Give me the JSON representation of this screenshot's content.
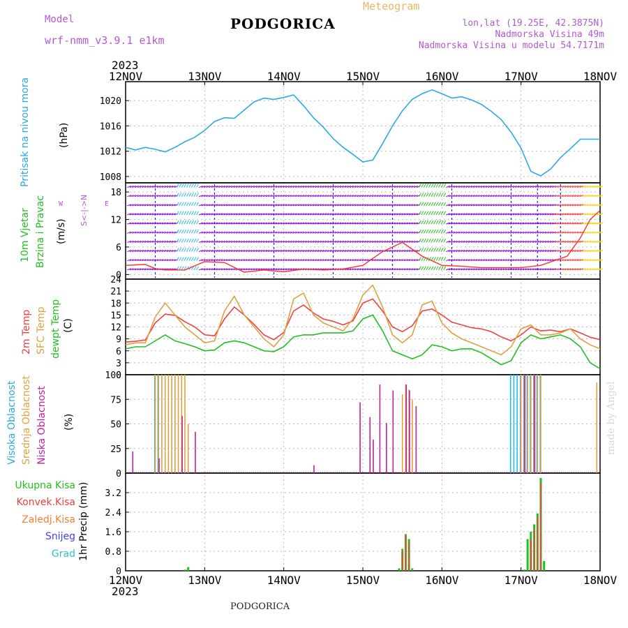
{
  "header": {
    "model_label": "Model",
    "model_name": "wrf-nmm_v3.9.1 e1km",
    "title": "PODGORICA",
    "meteogram": "Meteogram",
    "coords": "lon,lat (19.25E, 42.3875N)",
    "elevation": "Nadmorska Visina 49m",
    "model_elevation": "Nadmorska Visina u modelu 54.7171m"
  },
  "footer": {
    "station": "PODGORICA",
    "made_by": "made by Angel"
  },
  "time_axis": {
    "year": "2023",
    "labels": [
      "12NOV",
      "13NOV",
      "14NOV",
      "15NOV",
      "16NOV",
      "17NOV",
      "18NOV"
    ]
  },
  "colors": {
    "pressure": "#29a9e6",
    "wind_purple": "#8b00d9",
    "wind_cyan": "#2ab8e8",
    "wind_blue": "#2020ff",
    "wind_green": "#20c020",
    "wind_yellow": "#f0d000",
    "wind_red": "#ff3030",
    "temp_2m": "#f04040",
    "temp_sfc": "#e0a040",
    "dewpt": "#20c020",
    "cloud_high": "#2ab8e8",
    "cloud_mid": "#e0a040",
    "cloud_low": "#c0209a",
    "precip_total": "#20c020",
    "precip_conv": "#f04040",
    "precip_frozen": "#f08030",
    "snow": "#4040ff",
    "hail": "#30c0c0",
    "grid": "#bbbbbb"
  },
  "panels": {
    "pressure": {
      "label": "Pritisak na nivou mora",
      "unit": "(hPa)"
    },
    "wind": {
      "label1": "10m Vjetar",
      "label2": "Brzina i Pravac",
      "unit": "(m/s)",
      "compass_ns": "S<-|->N",
      "compass_w": "W",
      "compass_e": "E"
    },
    "temp": {
      "label1": "2m Temp",
      "label2": "SFC Temp",
      "label3": "dewpt Temp",
      "unit": "(C)"
    },
    "cloud": {
      "label1": "Visoka Oblacnost",
      "label2": "Srednja Oblacnost",
      "label3": "Niska Oblacnost",
      "unit": "(%)"
    },
    "precip": {
      "labels": [
        "Ukupna Kisa",
        "Konvek.Kisa",
        "Zaledj.Kisa",
        "Snijeg",
        "Grad"
      ],
      "unit": "1hr Precip (mm)"
    }
  },
  "chart_data": [
    {
      "type": "line",
      "title": "Pritisak na nivou mora",
      "ylabel": "(hPa)",
      "xlim": [
        0,
        144
      ],
      "ylim": [
        1007,
        1023
      ],
      "yticks": [
        1008,
        1012,
        1016,
        1020
      ],
      "series": [
        {
          "name": "Pritisak na nivou mora",
          "x": [
            0,
            3,
            6,
            9,
            12,
            15,
            18,
            21,
            24,
            27,
            30,
            33,
            36,
            39,
            42,
            45,
            48,
            51,
            54,
            57,
            60,
            63,
            66,
            69,
            72,
            75,
            78,
            81,
            84,
            87,
            90,
            93,
            96,
            99,
            102,
            105,
            108,
            111,
            114,
            117,
            120,
            123,
            126,
            129,
            132,
            135,
            138,
            141,
            144
          ],
          "values": [
            1012.6,
            1012.2,
            1012.6,
            1012.3,
            1011.9,
            1012.6,
            1013.5,
            1014.2,
            1015.3,
            1016.7,
            1017.3,
            1017.2,
            1018.5,
            1019.8,
            1020.4,
            1020.2,
            1020.5,
            1020.9,
            1019.2,
            1017.3,
            1015.8,
            1014.0,
            1012.6,
            1011.5,
            1010.3,
            1010.6,
            1013.2,
            1016.0,
            1018.4,
            1020.2,
            1021.1,
            1021.7,
            1021.1,
            1020.4,
            1020.6,
            1020.1,
            1019.4,
            1018.3,
            1017.0,
            1015.0,
            1012.5,
            1008.8,
            1008.1,
            1009.2,
            1011.0,
            1012.4,
            1013.9,
            1013.9,
            1013.9
          ]
        }
      ]
    },
    {
      "type": "line",
      "title": "10m Vjetar Brzina i Pravac",
      "ylabel": "(m/s)",
      "xlim": [
        0,
        144
      ],
      "ylim": [
        -1,
        20
      ],
      "yticks": [
        0,
        6,
        12,
        18
      ],
      "series": [
        {
          "name": "10m Vjetar",
          "x": [
            0,
            6,
            9,
            12,
            18,
            24,
            30,
            36,
            42,
            48,
            54,
            60,
            66,
            72,
            78,
            84,
            90,
            96,
            102,
            108,
            114,
            120,
            126,
            130,
            134,
            138,
            141,
            144
          ],
          "values": [
            2.0,
            2.2,
            1.3,
            1.0,
            1.0,
            2.8,
            2.6,
            0.5,
            1.0,
            0.6,
            1.2,
            1.0,
            1.2,
            2.0,
            5.0,
            7.0,
            4.0,
            2.0,
            1.8,
            1.5,
            1.5,
            1.5,
            2.0,
            3.0,
            4.0,
            8.0,
            12.0,
            14.0
          ]
        }
      ]
    },
    {
      "type": "line",
      "title": "2m Temp / SFC Temp / dewpt Temp",
      "ylabel": "(C)",
      "xlim": [
        0,
        144
      ],
      "ylim": [
        0,
        24
      ],
      "yticks": [
        0,
        3,
        6,
        9,
        12,
        15,
        18,
        21,
        24
      ],
      "series": [
        {
          "name": "2m Temp",
          "x": [
            0,
            3,
            6,
            9,
            12,
            15,
            18,
            21,
            24,
            27,
            30,
            33,
            36,
            39,
            42,
            45,
            48,
            51,
            54,
            57,
            60,
            63,
            66,
            69,
            72,
            75,
            78,
            81,
            84,
            87,
            90,
            93,
            96,
            99,
            102,
            105,
            108,
            111,
            114,
            117,
            120,
            123,
            126,
            129,
            132,
            135,
            138,
            141,
            144
          ],
          "values": [
            8.2,
            8.4,
            8.7,
            13.0,
            15.2,
            14.9,
            13.3,
            12.0,
            10.0,
            9.8,
            14.0,
            17.0,
            15.0,
            12.6,
            10.0,
            8.8,
            10.6,
            16.0,
            17.5,
            15.5,
            14.0,
            13.4,
            12.5,
            13.5,
            18.0,
            19.0,
            16.0,
            12.0,
            10.8,
            12.3,
            16.0,
            16.5,
            15.0,
            13.2,
            12.5,
            11.8,
            11.5,
            10.8,
            9.5,
            8.5,
            10.0,
            12.0,
            11.0,
            11.2,
            10.8,
            11.5,
            10.5,
            9.4,
            8.8
          ]
        },
        {
          "name": "SFC Temp",
          "x": [
            0,
            3,
            6,
            9,
            12,
            15,
            18,
            21,
            24,
            27,
            30,
            33,
            36,
            39,
            42,
            45,
            48,
            51,
            54,
            57,
            60,
            63,
            66,
            69,
            72,
            75,
            78,
            81,
            84,
            87,
            90,
            93,
            96,
            99,
            102,
            105,
            108,
            111,
            114,
            117,
            120,
            123,
            126,
            129,
            132,
            135,
            138,
            141,
            144
          ],
          "values": [
            7.5,
            8.0,
            8.0,
            14.5,
            18.0,
            15.0,
            12.0,
            10.0,
            8.0,
            8.5,
            16.0,
            19.7,
            15.0,
            12.0,
            9.0,
            7.0,
            10.0,
            19.0,
            20.5,
            15.0,
            13.0,
            12.0,
            11.0,
            14.0,
            20.0,
            22.5,
            17.0,
            10.0,
            8.0,
            10.0,
            17.5,
            18.5,
            13.0,
            10.5,
            9.0,
            8.0,
            7.0,
            6.0,
            5.0,
            7.0,
            11.5,
            12.5,
            10.0,
            10.0,
            10.5,
            11.5,
            9.0,
            7.5,
            6.5
          ]
        },
        {
          "name": "dewpt Temp",
          "x": [
            0,
            3,
            6,
            9,
            12,
            15,
            18,
            21,
            24,
            27,
            30,
            33,
            36,
            39,
            42,
            45,
            48,
            51,
            54,
            57,
            60,
            63,
            66,
            69,
            72,
            75,
            78,
            81,
            84,
            87,
            90,
            93,
            96,
            99,
            102,
            105,
            108,
            111,
            114,
            117,
            120,
            123,
            126,
            129,
            132,
            135,
            138,
            141,
            144
          ],
          "values": [
            6.5,
            7.0,
            7.0,
            8.5,
            10.0,
            8.5,
            7.8,
            7.0,
            6.0,
            6.2,
            8.0,
            8.5,
            8.0,
            7.0,
            6.0,
            5.8,
            7.0,
            9.5,
            10.0,
            10.0,
            10.5,
            10.5,
            10.5,
            11.0,
            14.0,
            15.0,
            11.0,
            6.0,
            5.0,
            4.0,
            5.0,
            7.5,
            7.0,
            6.0,
            6.5,
            6.5,
            5.5,
            4.0,
            2.5,
            3.5,
            8.0,
            10.0,
            9.0,
            9.5,
            10.0,
            9.0,
            7.0,
            3.0,
            1.5
          ]
        }
      ]
    },
    {
      "type": "bar",
      "title": "Visoka / Srednja / Niska Oblacnost",
      "ylabel": "(%)",
      "xlim": [
        0,
        144
      ],
      "ylim": [
        0,
        100
      ],
      "yticks": [
        0,
        25,
        50,
        75,
        100
      ],
      "series": [
        {
          "name": "Visoka Oblacnost",
          "x": [
            9,
            10,
            117,
            118,
            119,
            120,
            121,
            122,
            123,
            124,
            125,
            126
          ],
          "values": [
            100,
            100,
            100,
            100,
            100,
            100,
            100,
            100,
            100,
            100,
            100,
            100
          ]
        },
        {
          "name": "Srednja Oblacnost",
          "x": [
            9,
            10,
            11,
            12,
            13,
            14,
            15,
            16,
            17,
            18,
            19,
            84,
            85,
            86,
            87,
            120,
            121,
            122,
            123,
            124,
            125,
            126,
            143
          ],
          "values": [
            100,
            100,
            100,
            100,
            100,
            100,
            100,
            100,
            100,
            100,
            50,
            80,
            90,
            85,
            75,
            100,
            100,
            100,
            100,
            100,
            100,
            100,
            92
          ]
        },
        {
          "name": "Niska Oblacnost",
          "x": [
            2,
            10,
            17,
            21,
            57,
            71,
            74,
            75,
            77,
            79,
            81,
            85,
            86,
            88,
            121,
            124
          ],
          "values": [
            22,
            15,
            58,
            42,
            8,
            72,
            57,
            34,
            90,
            51,
            84,
            90,
            84,
            68,
            100,
            100
          ]
        }
      ]
    },
    {
      "type": "bar",
      "title": "1hr Precip",
      "ylabel": "1hr Precip (mm)",
      "xlim": [
        0,
        144
      ],
      "ylim": [
        0,
        4.0
      ],
      "yticks": [
        0,
        0.8,
        1.6,
        2.4,
        3.2
      ],
      "series": [
        {
          "name": "Ukupna Kisa",
          "x": [
            18,
            19,
            83,
            84,
            85,
            86,
            87,
            121,
            122,
            123,
            124,
            125,
            126,
            127
          ],
          "values": [
            0.05,
            0.15,
            0.1,
            0.9,
            1.5,
            1.3,
            0.1,
            0.05,
            1.3,
            1.6,
            1.9,
            2.35,
            3.8,
            0.4
          ]
        },
        {
          "name": "Konvek.Kisa",
          "x": [
            84,
            85,
            86,
            123,
            124,
            125,
            126
          ],
          "values": [
            0.8,
            1.5,
            1.2,
            1.3,
            1.7,
            2.2,
            3.6
          ]
        }
      ]
    }
  ]
}
